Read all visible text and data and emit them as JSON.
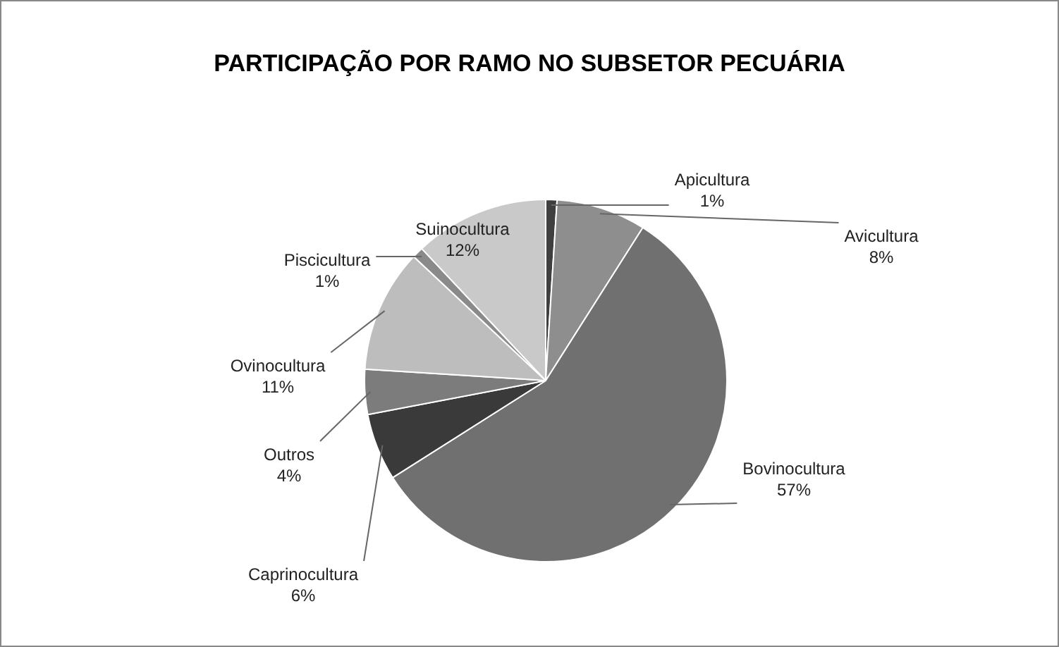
{
  "chart_data": {
    "type": "pie",
    "title": "PARTICIPAÇÃO POR RAMO NO SUBSETOR PECUÁRIA",
    "categories": [
      "Apicultura",
      "Avicultura",
      "Bovinocultura",
      "Caprinocultura",
      "Outros",
      "Ovinocultura",
      "Piscicultura",
      "Suinocultura"
    ],
    "values": [
      1,
      8,
      57,
      6,
      4,
      11,
      1,
      12
    ],
    "value_labels": [
      "1%",
      "8%",
      "57%",
      "6%",
      "4%",
      "11%",
      "1%",
      "12%"
    ],
    "colors": [
      "#3f3f3f",
      "#8e8e8e",
      "#707070",
      "#3a3a3a",
      "#7c7c7c",
      "#bdbdbd",
      "#8a8a8a",
      "#c9c9c9"
    ],
    "legend": false
  }
}
